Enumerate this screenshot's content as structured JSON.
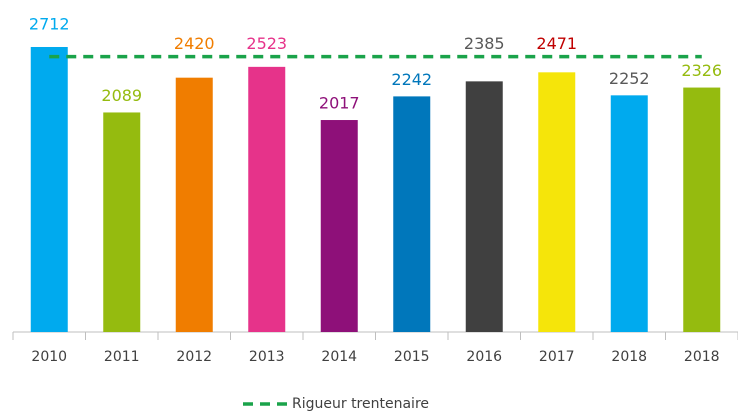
{
  "chart_data": {
    "type": "bar",
    "categories": [
      "2010",
      "2011",
      "2012",
      "2013",
      "2014",
      "2015",
      "2016",
      "2017",
      "2018",
      "2018"
    ],
    "values": [
      2712,
      2089,
      2420,
      2523,
      2017,
      2242,
      2385,
      2471,
      2252,
      2326
    ],
    "colors": [
      "#00aaee",
      "#95bb0f",
      "#f07d00",
      "#e6338a",
      "#8e1079",
      "#0077bb",
      "#404040",
      "#f5e50a",
      "#00aaee",
      "#95bb0f"
    ],
    "label_colors": [
      "#00aaee",
      "#95bb0f",
      "#f07d00",
      "#e6338a",
      "#8e1079",
      "#0077bb",
      "#595959",
      "#c00000",
      "#595959",
      "#95bb0f"
    ],
    "ylim": [
      0,
      2750
    ],
    "reference_line": {
      "name": "Rigueur trentenaire",
      "value": 2620,
      "color": "#1aa34a",
      "dashed": true
    },
    "legend": "bottom"
  }
}
